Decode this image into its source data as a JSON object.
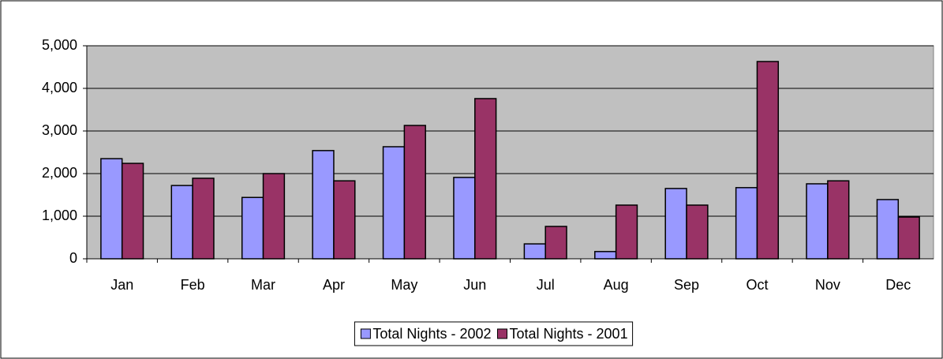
{
  "chart_data": {
    "type": "bar",
    "categories": [
      "Jan",
      "Feb",
      "Mar",
      "Apr",
      "May",
      "Jun",
      "Jul",
      "Aug",
      "Sep",
      "Oct",
      "Nov",
      "Dec"
    ],
    "series": [
      {
        "name": "Total Nights - 2002",
        "color": "#9999ff",
        "values": [
          2350,
          1720,
          1440,
          2540,
          2630,
          1910,
          350,
          170,
          1650,
          1670,
          1760,
          1390
        ]
      },
      {
        "name": "Total Nights - 2001",
        "color": "#993366",
        "values": [
          2240,
          1890,
          2000,
          1830,
          3130,
          3760,
          760,
          1260,
          1260,
          4630,
          1830,
          980
        ]
      }
    ],
    "ylim": [
      0,
      5000
    ],
    "yticks": [
      0,
      {
        "value": 1000,
        "label": "1,000"
      },
      {
        "value": 2000,
        "label": "2,000"
      },
      {
        "value": 3000,
        "label": "3,000"
      },
      {
        "value": 4000,
        "label": "4,000"
      },
      {
        "value": 5000,
        "label": "5,000"
      }
    ],
    "grid": true,
    "legend": "bottom",
    "plot_background": "#c0c0c0"
  }
}
